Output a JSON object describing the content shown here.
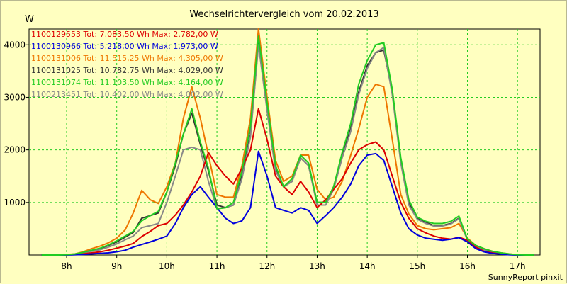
{
  "chart_data": {
    "type": "line",
    "title": "Wechselrichtervergleich vom 20.02.2013",
    "ylabel": "W",
    "xlabel": "",
    "footer": "SunnyReport pinxit",
    "ylim": [
      0,
      4300
    ],
    "xlim": [
      7.25,
      17.45
    ],
    "yticks": [
      1000,
      2000,
      3000,
      4000
    ],
    "xticks": [
      {
        "x": 8,
        "label": "8h"
      },
      {
        "x": 9,
        "label": "9h"
      },
      {
        "x": 10,
        "label": "10h"
      },
      {
        "x": 11,
        "label": "11h"
      },
      {
        "x": 12,
        "label": "12h"
      },
      {
        "x": 13,
        "label": "13h"
      },
      {
        "x": 14,
        "label": "14h"
      },
      {
        "x": 15,
        "label": "15h"
      },
      {
        "x": 16,
        "label": "16h"
      },
      {
        "x": 17,
        "label": "17h"
      }
    ],
    "grid": true,
    "x": [
      7.5,
      7.67,
      7.83,
      8.0,
      8.17,
      8.33,
      8.5,
      8.67,
      8.83,
      9.0,
      9.17,
      9.33,
      9.5,
      9.67,
      9.83,
      10.0,
      10.17,
      10.33,
      10.5,
      10.67,
      10.83,
      11.0,
      11.17,
      11.33,
      11.5,
      11.67,
      11.83,
      12.0,
      12.17,
      12.33,
      12.5,
      12.67,
      12.83,
      13.0,
      13.17,
      13.33,
      13.5,
      13.67,
      13.83,
      14.0,
      14.17,
      14.33,
      14.5,
      14.67,
      14.83,
      15.0,
      15.17,
      15.33,
      15.5,
      15.67,
      15.83,
      16.0,
      16.17,
      16.33,
      16.5,
      16.67,
      16.83,
      17.0,
      17.17,
      17.33
    ],
    "series": [
      {
        "name": "1100129553",
        "legend": "1100129553 Tot: 7.083,50 Wh Max: 2.782,00 W",
        "color": "#dd0000",
        "values": [
          0,
          0,
          0,
          5,
          10,
          20,
          40,
          60,
          90,
          130,
          170,
          220,
          350,
          450,
          560,
          600,
          760,
          950,
          1200,
          1500,
          1950,
          1700,
          1500,
          1350,
          1650,
          2000,
          2782,
          2200,
          1500,
          1300,
          1150,
          1400,
          1200,
          900,
          1050,
          1250,
          1450,
          1750,
          2000,
          2100,
          2150,
          2000,
          1500,
          1000,
          700,
          500,
          420,
          360,
          320,
          300,
          340,
          280,
          150,
          70,
          40,
          20,
          10,
          0,
          0,
          0
        ]
      },
      {
        "name": "1100130966",
        "legend": "1100130966 Tot: 5.218,00 Wh Max: 1.973,00 W",
        "color": "#0000dd",
        "values": [
          0,
          0,
          0,
          0,
          5,
          10,
          20,
          30,
          40,
          60,
          90,
          150,
          200,
          250,
          300,
          360,
          600,
          900,
          1150,
          1300,
          1100,
          900,
          700,
          600,
          650,
          900,
          1973,
          1500,
          900,
          850,
          800,
          900,
          850,
          600,
          750,
          900,
          1100,
          1350,
          1700,
          1900,
          1930,
          1800,
          1300,
          800,
          500,
          380,
          320,
          300,
          280,
          300,
          330,
          250,
          120,
          60,
          30,
          15,
          5,
          0,
          0,
          0
        ]
      },
      {
        "name": "1100131006",
        "legend": "1100131006 Tot: 11.515,25 Wh Max: 4.305,00 W",
        "color": "#ee7700",
        "values": [
          0,
          0,
          0,
          10,
          20,
          60,
          120,
          170,
          230,
          320,
          480,
          800,
          1230,
          1050,
          980,
          1300,
          1750,
          2600,
          3200,
          2600,
          1900,
          1150,
          1100,
          1100,
          1700,
          2600,
          4305,
          3000,
          1800,
          1400,
          1500,
          1900,
          1900,
          1250,
          1050,
          1100,
          1400,
          1900,
          2400,
          3000,
          3250,
          3200,
          2200,
          1150,
          780,
          560,
          500,
          480,
          500,
          520,
          600,
          320,
          180,
          120,
          70,
          40,
          20,
          5,
          0,
          0
        ]
      },
      {
        "name": "1100131025",
        "legend": "1100131025 Tot: 10.782,75 Wh Max: 4.029,00 W",
        "color": "#333333",
        "values": [
          0,
          0,
          0,
          5,
          15,
          40,
          80,
          120,
          180,
          250,
          340,
          430,
          700,
          750,
          800,
          1200,
          1700,
          2300,
          2700,
          2100,
          1600,
          950,
          900,
          950,
          1500,
          2300,
          4029,
          2800,
          1650,
          1300,
          1400,
          1850,
          1700,
          1000,
          1000,
          1300,
          1900,
          2400,
          3100,
          3600,
          3850,
          3900,
          3100,
          1800,
          1000,
          700,
          620,
          560,
          560,
          600,
          700,
          300,
          170,
          110,
          60,
          30,
          15,
          5,
          0,
          0
        ]
      },
      {
        "name": "1100131074",
        "legend": "1100131074 Tot: 11.103,50 Wh Max: 4.164,00 W",
        "color": "#22cc22",
        "values": [
          0,
          0,
          0,
          5,
          20,
          50,
          90,
          130,
          190,
          270,
          360,
          450,
          650,
          750,
          830,
          1200,
          1750,
          2300,
          2780,
          2150,
          1650,
          880,
          900,
          1000,
          1600,
          2450,
          4164,
          2900,
          1700,
          1300,
          1450,
          1900,
          1750,
          1000,
          1000,
          1300,
          1950,
          2500,
          3250,
          3700,
          4000,
          4040,
          3150,
          1850,
          1050,
          720,
          640,
          600,
          600,
          640,
          740,
          300,
          180,
          120,
          70,
          40,
          20,
          5,
          0,
          0
        ]
      },
      {
        "name": "1100213451",
        "legend": "1100213451 Tot: 10.402,00 Wh Max: 4.002,00 W",
        "color": "#888888",
        "values": [
          0,
          0,
          0,
          5,
          15,
          35,
          70,
          100,
          150,
          210,
          290,
          360,
          520,
          560,
          600,
          1000,
          1500,
          2000,
          2050,
          2000,
          1400,
          880,
          900,
          950,
          1450,
          2250,
          4002,
          2750,
          1600,
          1300,
          1400,
          1850,
          1700,
          950,
          950,
          1250,
          1850,
          2350,
          3050,
          3550,
          3850,
          3950,
          3050,
          1750,
          950,
          680,
          600,
          550,
          550,
          590,
          690,
          280,
          160,
          100,
          55,
          25,
          10,
          5,
          0,
          0
        ]
      }
    ]
  }
}
